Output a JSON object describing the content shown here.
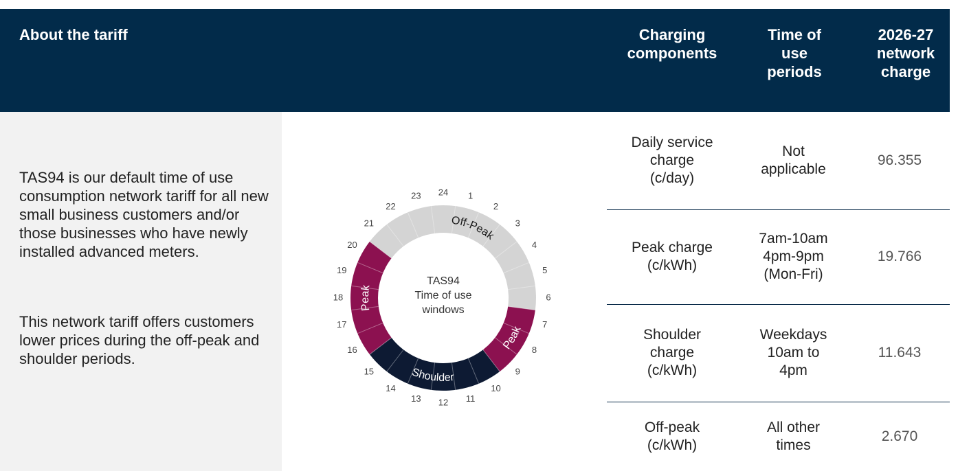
{
  "header": {
    "about": "About the tariff",
    "columns": [
      "Charging components",
      "Time of use periods",
      "2026-27 network charge"
    ]
  },
  "description": [
    "TAS94 is our default time of use consumption network tariff for all new small business customers and/or those businesses who have newly installed advanced meters.",
    "This network tariff offers customers lower prices during the off-peak and shoulder periods."
  ],
  "diagram": {
    "center_lines": [
      "TAS94",
      "Time of use",
      "windows"
    ],
    "hours": [
      "1",
      "2",
      "3",
      "4",
      "5",
      "6",
      "7",
      "8",
      "9",
      "10",
      "11",
      "12",
      "13",
      "14",
      "15",
      "16",
      "17",
      "18",
      "19",
      "20",
      "21",
      "22",
      "23",
      "24"
    ],
    "segments": [
      {
        "label": "Off-Peak",
        "start": 21,
        "end": 7,
        "color": "#d4d4d4",
        "text_color": "#1a1a1a"
      },
      {
        "label": "Peak",
        "start": 7,
        "end": 10,
        "color": "#8c1150",
        "text_color": "#ffffff"
      },
      {
        "label": "Shoulder",
        "start": 10,
        "end": 16,
        "color": "#0d1a33",
        "text_color": "#ffffff"
      },
      {
        "label": "Peak",
        "start": 16,
        "end": 21,
        "color": "#8c1150",
        "text_color": "#ffffff"
      }
    ]
  },
  "table": {
    "rows": [
      [
        "Daily service charge (c/day)",
        "Not applicable",
        "96.355"
      ],
      [
        "Peak charge (c/kWh)",
        "7am-10am 4pm-9pm (Mon-Fri)",
        "19.766"
      ],
      [
        "Shoulder charge (c/kWh)",
        "Weekdays 10am to 4pm",
        "11.643"
      ],
      [
        "Off-peak (c/kWh)",
        "All other times",
        "2.670"
      ]
    ]
  }
}
